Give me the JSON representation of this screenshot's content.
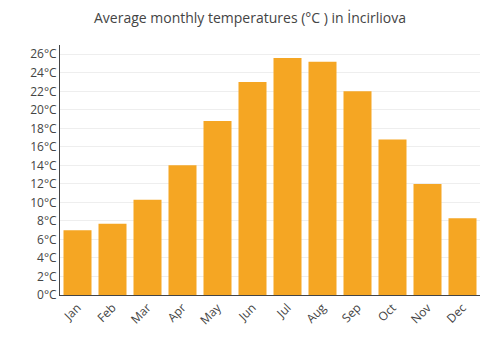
{
  "chart_data": {
    "type": "bar",
    "title": "Average monthly temperatures (°C ) in İncirliova",
    "categories": [
      "Jan",
      "Feb",
      "Mar",
      "Apr",
      "May",
      "Jun",
      "Jul",
      "Aug",
      "Sep",
      "Oct",
      "Nov",
      "Dec"
    ],
    "values": [
      7.0,
      7.7,
      10.3,
      14.0,
      18.8,
      23.0,
      25.6,
      25.2,
      22.0,
      16.8,
      12.0,
      8.3
    ],
    "color": "#F5A623",
    "ylim": [
      0,
      27
    ],
    "yticks": [
      {
        "value": 0,
        "label": "0°C"
      },
      {
        "value": 2,
        "label": "2°C"
      },
      {
        "value": 4,
        "label": "4°C"
      },
      {
        "value": 6,
        "label": "6°C"
      },
      {
        "value": 8,
        "label": "8°C"
      },
      {
        "value": 10,
        "label": "10°C"
      },
      {
        "value": 12,
        "label": "12°C"
      },
      {
        "value": 14,
        "label": "14°C"
      },
      {
        "value": 16,
        "label": "16°C"
      },
      {
        "value": 18,
        "label": "18°C"
      },
      {
        "value": 20,
        "label": "20°C"
      },
      {
        "value": 22,
        "label": "22°C"
      },
      {
        "value": 24,
        "label": "24°C"
      },
      {
        "value": 26,
        "label": "26°C"
      }
    ],
    "grid": true
  }
}
